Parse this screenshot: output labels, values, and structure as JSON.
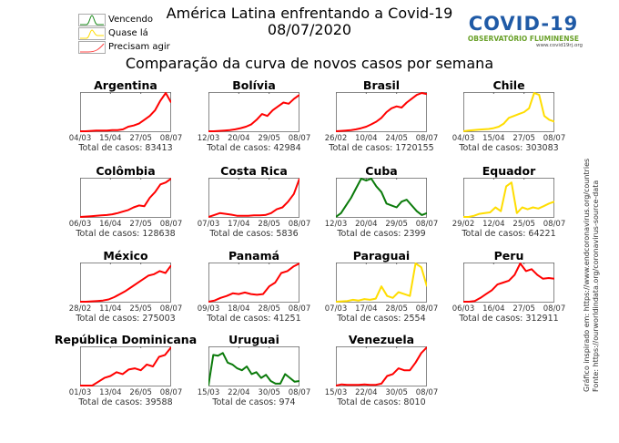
{
  "header": {
    "title": "América Latina enfrentando a Covid-19",
    "date": "08/07/2020",
    "subtitle": "Comparação da curva de novos casos por semana"
  },
  "legend": [
    {
      "label": "Vencendo",
      "color": "#1a8a1a"
    },
    {
      "label": "Quase lá",
      "color": "#ffdd00"
    },
    {
      "label": "Precisam agir",
      "color": "#ff0000"
    }
  ],
  "logo": {
    "main": "COVID-19",
    "sub": "OBSERVATÓRIO FLUMINENSE",
    "url": "www.covid19rj.org"
  },
  "source": {
    "line1": "Gráfico inspirado em: https://www.endcoronavirus.org/countries",
    "line2": "Fonte: https://ourworldindata.org/coronavirus-source-data"
  },
  "colors": {
    "red": "#ff0000",
    "yellow": "#ffdd00",
    "green": "#0a7a0a"
  },
  "chart_data": {
    "type": "line",
    "title": "Comparação da curva de novos casos por semana",
    "grid": false,
    "panels": [
      {
        "name": "Argentina",
        "status": "red",
        "xticks": [
          "04/03",
          "15/04",
          "27/05",
          "08/07"
        ],
        "total": "Total de casos: 83413",
        "values": [
          0,
          0,
          1,
          2,
          2,
          2,
          3,
          3,
          5,
          12,
          15,
          20,
          30,
          40,
          55,
          80,
          100,
          75
        ]
      },
      {
        "name": "Bolívia",
        "status": "red",
        "xticks": [
          "12/03",
          "20/04",
          "29/05",
          "08/07"
        ],
        "total": "Total de casos: 42984",
        "values": [
          0,
          0,
          1,
          2,
          3,
          5,
          8,
          12,
          18,
          30,
          45,
          40,
          55,
          65,
          75,
          72,
          85,
          95
        ]
      },
      {
        "name": "Brasil",
        "status": "red",
        "xticks": [
          "26/02",
          "10/04",
          "24/05",
          "08/07"
        ],
        "total": "Total de casos: 1720155",
        "values": [
          0,
          1,
          2,
          3,
          5,
          8,
          12,
          18,
          25,
          35,
          50,
          60,
          65,
          62,
          75,
          85,
          95,
          100,
          97
        ]
      },
      {
        "name": "Chile",
        "status": "yellow",
        "xticks": [
          "04/03",
          "15/04",
          "27/05",
          "08/07"
        ],
        "total": "Total de casos: 303083",
        "values": [
          0,
          2,
          3,
          4,
          5,
          6,
          8,
          12,
          20,
          35,
          40,
          45,
          50,
          60,
          100,
          95,
          40,
          30,
          25
        ]
      },
      {
        "name": "Colômbia",
        "status": "red",
        "xticks": [
          "06/03",
          "16/04",
          "27/05",
          "08/07"
        ],
        "total": "Total de casos: 128638",
        "values": [
          0,
          1,
          2,
          3,
          4,
          5,
          7,
          10,
          14,
          18,
          25,
          30,
          28,
          50,
          65,
          85,
          90,
          100
        ]
      },
      {
        "name": "Costa Rica",
        "status": "red",
        "xticks": [
          "07/03",
          "17/04",
          "28/05",
          "08/07"
        ],
        "total": "Total de casos: 5836",
        "values": [
          0,
          5,
          10,
          8,
          6,
          3,
          3,
          3,
          4,
          4,
          5,
          10,
          20,
          25,
          40,
          60,
          100
        ]
      },
      {
        "name": "Cuba",
        "status": "green",
        "xticks": [
          "12/03",
          "20/04",
          "29/05",
          "08/07"
        ],
        "total": "Total de casos: 2399",
        "values": [
          0,
          10,
          30,
          50,
          75,
          100,
          95,
          100,
          80,
          65,
          35,
          30,
          25,
          40,
          45,
          30,
          15,
          5,
          10
        ]
      },
      {
        "name": "Equador",
        "status": "yellow",
        "xticks": [
          "29/02",
          "12/04",
          "25/05",
          "08/07"
        ],
        "total": "Total de casos: 64221",
        "values": [
          0,
          0,
          3,
          8,
          10,
          12,
          25,
          15,
          80,
          90,
          10,
          25,
          20,
          25,
          22,
          28,
          35,
          40
        ]
      },
      {
        "name": "México",
        "status": "red",
        "xticks": [
          "28/02",
          "11/04",
          "25/05",
          "08/07"
        ],
        "total": "Total de casos: 275003",
        "values": [
          0,
          0,
          1,
          2,
          3,
          6,
          12,
          20,
          28,
          38,
          48,
          58,
          68,
          72,
          80,
          75,
          95
        ]
      },
      {
        "name": "Panamá",
        "status": "red",
        "xticks": [
          "09/03",
          "18/04",
          "28/05",
          "08/07"
        ],
        "total": "Total de casos: 41251",
        "values": [
          0,
          3,
          10,
          15,
          22,
          20,
          24,
          20,
          18,
          20,
          40,
          50,
          75,
          80,
          92,
          100
        ]
      },
      {
        "name": "Paraguai",
        "status": "yellow",
        "xticks": [
          "07/03",
          "17/04",
          "28/05",
          "08/07"
        ],
        "total": "Total de casos: 2554",
        "values": [
          0,
          1,
          2,
          5,
          3,
          7,
          5,
          8,
          40,
          15,
          10,
          25,
          20,
          15,
          100,
          90,
          40
        ]
      },
      {
        "name": "Peru",
        "status": "red",
        "xticks": [
          "06/03",
          "16/04",
          "27/05",
          "08/07"
        ],
        "total": "Total de casos: 312911",
        "values": [
          0,
          0,
          2,
          10,
          20,
          30,
          45,
          50,
          55,
          70,
          100,
          80,
          85,
          70,
          60,
          62,
          60
        ]
      },
      {
        "name": "República Dominicana",
        "status": "red",
        "xticks": [
          "01/03",
          "13/04",
          "26/05",
          "08/07"
        ],
        "total": "Total de casos: 39588",
        "values": [
          0,
          0,
          0,
          10,
          20,
          25,
          35,
          30,
          42,
          45,
          40,
          55,
          50,
          75,
          80,
          100
        ]
      },
      {
        "name": "Uruguai",
        "status": "green",
        "xticks": [
          "15/03",
          "22/04",
          "30/05",
          "08/07"
        ],
        "total": "Total de casos: 974",
        "values": [
          0,
          80,
          78,
          85,
          60,
          55,
          45,
          40,
          50,
          30,
          35,
          20,
          28,
          12,
          5,
          5,
          30,
          20,
          10,
          12
        ]
      },
      {
        "name": "Venezuela",
        "status": "red",
        "xticks": [
          "15/03",
          "22/04",
          "30/05",
          "08/07"
        ],
        "total": "Total de casos: 8010",
        "values": [
          0,
          3,
          2,
          2,
          2,
          3,
          2,
          2,
          5,
          25,
          30,
          45,
          40,
          40,
          60,
          85,
          100
        ]
      }
    ]
  }
}
